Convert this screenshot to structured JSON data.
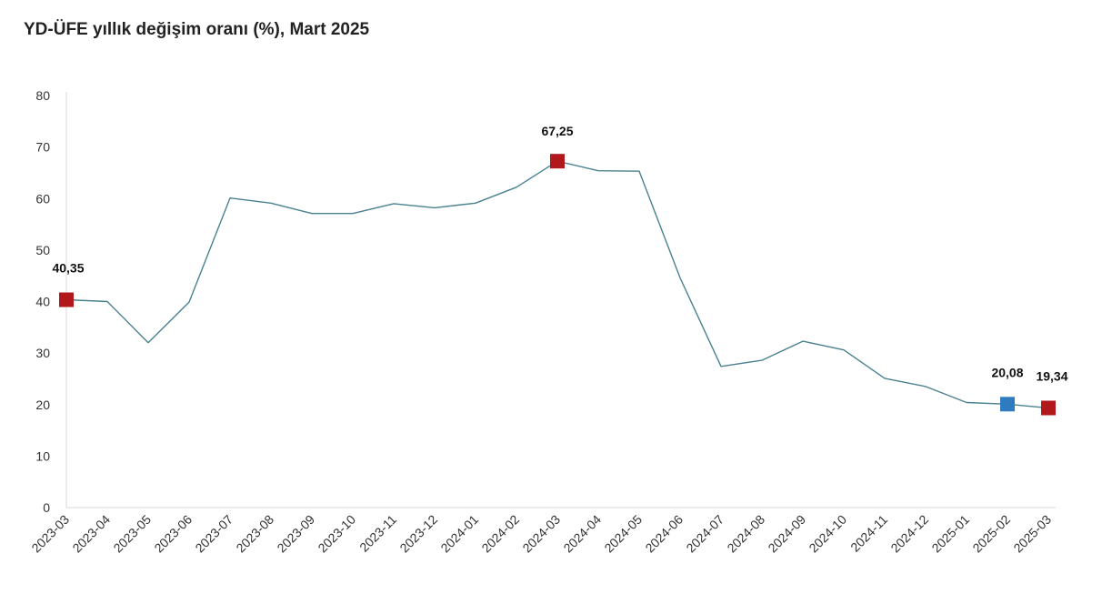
{
  "colors": {
    "line": "#4a8190",
    "marker_red": "#b0181b",
    "marker_blue": "#2e7bbf",
    "axis": "#d9d9d9"
  },
  "chart_data": {
    "type": "line",
    "title": "YD-ÜFE yıllık değişim oranı (%), Mart 2025",
    "xlabel": "",
    "ylabel": "",
    "ylim": [
      0,
      80
    ],
    "yticks": [
      "0",
      "10",
      "20",
      "30",
      "40",
      "50",
      "60",
      "70",
      "80"
    ],
    "grid": false,
    "legend": "none",
    "categories": [
      "2023-03",
      "2023-04",
      "2023-05",
      "2023-06",
      "2023-07",
      "2023-08",
      "2023-09",
      "2023-10",
      "2023-11",
      "2023-12",
      "2024-01",
      "2024-02",
      "2024-03",
      "2024-04",
      "2024-05",
      "2024-06",
      "2024-07",
      "2024-08",
      "2024-09",
      "2024-10",
      "2024-11",
      "2024-12",
      "2025-01",
      "2025-02",
      "2025-03"
    ],
    "series": [
      {
        "values": [
          40.35,
          40.0,
          32.0,
          39.9,
          60.1,
          59.1,
          57.1,
          57.1,
          59.0,
          58.2,
          59.1,
          62.2,
          67.25,
          65.4,
          65.3,
          44.6,
          27.4,
          28.6,
          32.3,
          30.6,
          25.1,
          23.5,
          20.4,
          20.08,
          19.34
        ]
      }
    ],
    "highlighted_points": [
      {
        "category": "2023-03",
        "label": "40,35",
        "color": "red"
      },
      {
        "category": "2024-03",
        "label": "67,25",
        "color": "red"
      },
      {
        "category": "2025-02",
        "label": "20,08",
        "color": "blue"
      },
      {
        "category": "2025-03",
        "label": "19,34",
        "color": "red"
      }
    ]
  }
}
